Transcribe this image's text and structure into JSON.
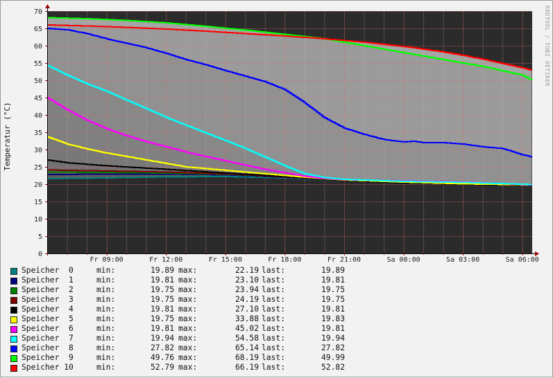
{
  "watermark": "RRDTOOL / TOBI OETIKER",
  "colors": {
    "background": "#f2f2f2",
    "canvas": "#2b2b2b",
    "fill_band": "#888888",
    "grid_minor": "#e8a7a7",
    "grid_major": "#d96b6b",
    "axis": "#000000",
    "arrow": "#990000"
  },
  "labels": {
    "min": "min:",
    "max": "max:",
    "last": "last:"
  },
  "chart_data": {
    "type": "area",
    "ylabel": "Temperatur (°C)",
    "ylim": [
      0,
      70
    ],
    "y_ticks": [
      "0",
      "5",
      "10",
      "15",
      "20",
      "25",
      "30",
      "35",
      "40",
      "45",
      "50",
      "55",
      "60",
      "65",
      "70"
    ],
    "x_range_hours": [
      6.0,
      30.5
    ],
    "x_ticks": [
      {
        "label": "Fr 09:00",
        "hour": 9
      },
      {
        "label": "Fr 12:00",
        "hour": 12
      },
      {
        "label": "Fr 15:00",
        "hour": 15
      },
      {
        "label": "Fr 18:00",
        "hour": 18
      },
      {
        "label": "Fr 21:00",
        "hour": 21
      },
      {
        "label": "Sa 00:00",
        "hour": 24
      },
      {
        "label": "Sa 03:00",
        "hour": 27
      },
      {
        "label": "Sa 06:00",
        "hour": 30
      }
    ],
    "grid": true,
    "legend_position": "bottom",
    "series": [
      {
        "name": "Speicher  0",
        "color": "#008080",
        "min": "19.89",
        "max": "22.19",
        "last": "19.89",
        "points": [
          [
            6,
            21.6
          ],
          [
            9,
            21.8
          ],
          [
            12,
            22.1
          ],
          [
            15,
            22.2
          ],
          [
            18,
            21.8
          ],
          [
            21,
            21.0
          ],
          [
            24,
            20.4
          ],
          [
            27,
            20.1
          ],
          [
            30.5,
            19.9
          ]
        ]
      },
      {
        "name": "Speicher  1",
        "color": "#000080",
        "min": "19.81",
        "max": "23.10",
        "last": "19.81",
        "points": [
          [
            6,
            22.8
          ],
          [
            9,
            22.9
          ],
          [
            12,
            22.9
          ],
          [
            15,
            22.7
          ],
          [
            18,
            22.0
          ],
          [
            21,
            21.0
          ],
          [
            24,
            20.4
          ],
          [
            27,
            20.0
          ],
          [
            30.5,
            19.8
          ]
        ]
      },
      {
        "name": "Speicher  2",
        "color": "#008000",
        "min": "19.75",
        "max": "23.94",
        "last": "19.75",
        "points": [
          [
            6,
            23.5
          ],
          [
            9,
            23.4
          ],
          [
            12,
            23.2
          ],
          [
            15,
            22.9
          ],
          [
            18,
            22.1
          ],
          [
            21,
            21.0
          ],
          [
            24,
            20.4
          ],
          [
            27,
            20.0
          ],
          [
            30.5,
            19.75
          ]
        ]
      },
      {
        "name": "Speicher  3",
        "color": "#800000",
        "min": "19.75",
        "max": "24.19",
        "last": "19.75",
        "points": [
          [
            6,
            24.1
          ],
          [
            9,
            23.8
          ],
          [
            12,
            23.5
          ],
          [
            15,
            23.0
          ],
          [
            18,
            22.1
          ],
          [
            21,
            21.0
          ],
          [
            24,
            20.4
          ],
          [
            27,
            20.0
          ],
          [
            30.5,
            19.75
          ]
        ]
      },
      {
        "name": "Speicher  4",
        "color": "#000000",
        "min": "19.81",
        "max": "27.10",
        "last": "19.81",
        "points": [
          [
            6,
            27.0
          ],
          [
            7,
            26.2
          ],
          [
            9,
            25.3
          ],
          [
            12,
            24.3
          ],
          [
            15,
            23.2
          ],
          [
            18,
            22.2
          ],
          [
            21,
            21.0
          ],
          [
            24,
            20.4
          ],
          [
            27,
            20.0
          ],
          [
            30.5,
            19.8
          ]
        ]
      },
      {
        "name": "Speicher  5",
        "color": "#ffff00",
        "min": "19.75",
        "max": "33.88",
        "last": "19.83",
        "points": [
          [
            6,
            33.7
          ],
          [
            7,
            31.6
          ],
          [
            8,
            30.2
          ],
          [
            9,
            29.0
          ],
          [
            11,
            27.0
          ],
          [
            13,
            25.0
          ],
          [
            15,
            24.0
          ],
          [
            17,
            23.0
          ],
          [
            19,
            22.0
          ],
          [
            21,
            21.2
          ],
          [
            24,
            20.6
          ],
          [
            27,
            20.1
          ],
          [
            30.5,
            19.8
          ]
        ]
      },
      {
        "name": "Speicher  6",
        "color": "#ff00ff",
        "min": "19.81",
        "max": "45.02",
        "last": "19.81",
        "points": [
          [
            6,
            45.0
          ],
          [
            7,
            41.5
          ],
          [
            8,
            38.5
          ],
          [
            9,
            36.0
          ],
          [
            10,
            34.0
          ],
          [
            11,
            32.3
          ],
          [
            12,
            30.8
          ],
          [
            13,
            29.3
          ],
          [
            14,
            28.0
          ],
          [
            15,
            26.8
          ],
          [
            16,
            25.5
          ],
          [
            17,
            24.3
          ],
          [
            18,
            23.3
          ],
          [
            19,
            22.3
          ],
          [
            20,
            21.7
          ],
          [
            21,
            21.3
          ],
          [
            24,
            20.9
          ],
          [
            27,
            20.6
          ],
          [
            30.5,
            19.8
          ]
        ]
      },
      {
        "name": "Speicher  7",
        "color": "#00ffff",
        "min": "19.94",
        "max": "54.58",
        "last": "19.94",
        "points": [
          [
            6,
            54.3
          ],
          [
            7,
            51.5
          ],
          [
            8,
            49.0
          ],
          [
            9,
            46.8
          ],
          [
            10,
            44.3
          ],
          [
            11,
            41.8
          ],
          [
            12,
            39.3
          ],
          [
            13,
            37.0
          ],
          [
            14,
            34.8
          ],
          [
            15,
            32.6
          ],
          [
            16,
            30.3
          ],
          [
            17,
            27.8
          ],
          [
            18,
            25.3
          ],
          [
            19,
            23.0
          ],
          [
            20,
            21.9
          ],
          [
            21,
            21.4
          ],
          [
            24,
            20.8
          ],
          [
            27,
            20.5
          ],
          [
            30.5,
            19.9
          ]
        ]
      },
      {
        "name": "Speicher  8",
        "color": "#0000ff",
        "min": "27.82",
        "max": "65.14",
        "last": "27.82",
        "points": [
          [
            6,
            65.0
          ],
          [
            7,
            64.6
          ],
          [
            8,
            63.5
          ],
          [
            9,
            62.0
          ],
          [
            10,
            60.7
          ],
          [
            11,
            59.4
          ],
          [
            12,
            57.8
          ],
          [
            13,
            56.0
          ],
          [
            14,
            54.5
          ],
          [
            15,
            52.8
          ],
          [
            16,
            51.2
          ],
          [
            17,
            49.6
          ],
          [
            18,
            47.3
          ],
          [
            19,
            43.5
          ],
          [
            20,
            39.2
          ],
          [
            21,
            36.2
          ],
          [
            22,
            34.4
          ],
          [
            23,
            32.9
          ],
          [
            24,
            32.2
          ],
          [
            24.5,
            32.4
          ],
          [
            25,
            32.0
          ],
          [
            26,
            32.0
          ],
          [
            27,
            31.6
          ],
          [
            28,
            30.8
          ],
          [
            29,
            30.3
          ],
          [
            30,
            28.5
          ],
          [
            30.5,
            27.8
          ]
        ]
      },
      {
        "name": "Speicher  9",
        "color": "#00ff00",
        "min": "49.76",
        "max": "68.19",
        "last": "49.99",
        "points": [
          [
            6,
            68.1
          ],
          [
            8,
            67.8
          ],
          [
            10,
            67.3
          ],
          [
            12,
            66.6
          ],
          [
            14,
            65.6
          ],
          [
            16,
            64.5
          ],
          [
            18,
            63.3
          ],
          [
            20,
            62.0
          ],
          [
            21,
            61.0
          ],
          [
            22,
            60.0
          ],
          [
            23,
            59.0
          ],
          [
            24,
            58.0
          ],
          [
            25,
            57.0
          ],
          [
            26,
            56.0
          ],
          [
            27,
            55.0
          ],
          [
            28,
            54.0
          ],
          [
            29,
            52.8
          ],
          [
            30,
            51.5
          ],
          [
            30.5,
            49.99
          ]
        ]
      },
      {
        "name": "Speicher 10",
        "color": "#ff0000",
        "min": "52.79",
        "max": "66.19",
        "last": "52.82",
        "points": [
          [
            6,
            66.0
          ],
          [
            8,
            65.7
          ],
          [
            10,
            65.3
          ],
          [
            12,
            64.8
          ],
          [
            14,
            64.2
          ],
          [
            16,
            63.5
          ],
          [
            18,
            62.8
          ],
          [
            20,
            62.0
          ],
          [
            22,
            61.0
          ],
          [
            24,
            59.8
          ],
          [
            25,
            59.0
          ],
          [
            26,
            58.2
          ],
          [
            27,
            57.2
          ],
          [
            28,
            56.1
          ],
          [
            29,
            54.9
          ],
          [
            30,
            53.6
          ],
          [
            30.5,
            52.82
          ]
        ]
      }
    ]
  }
}
